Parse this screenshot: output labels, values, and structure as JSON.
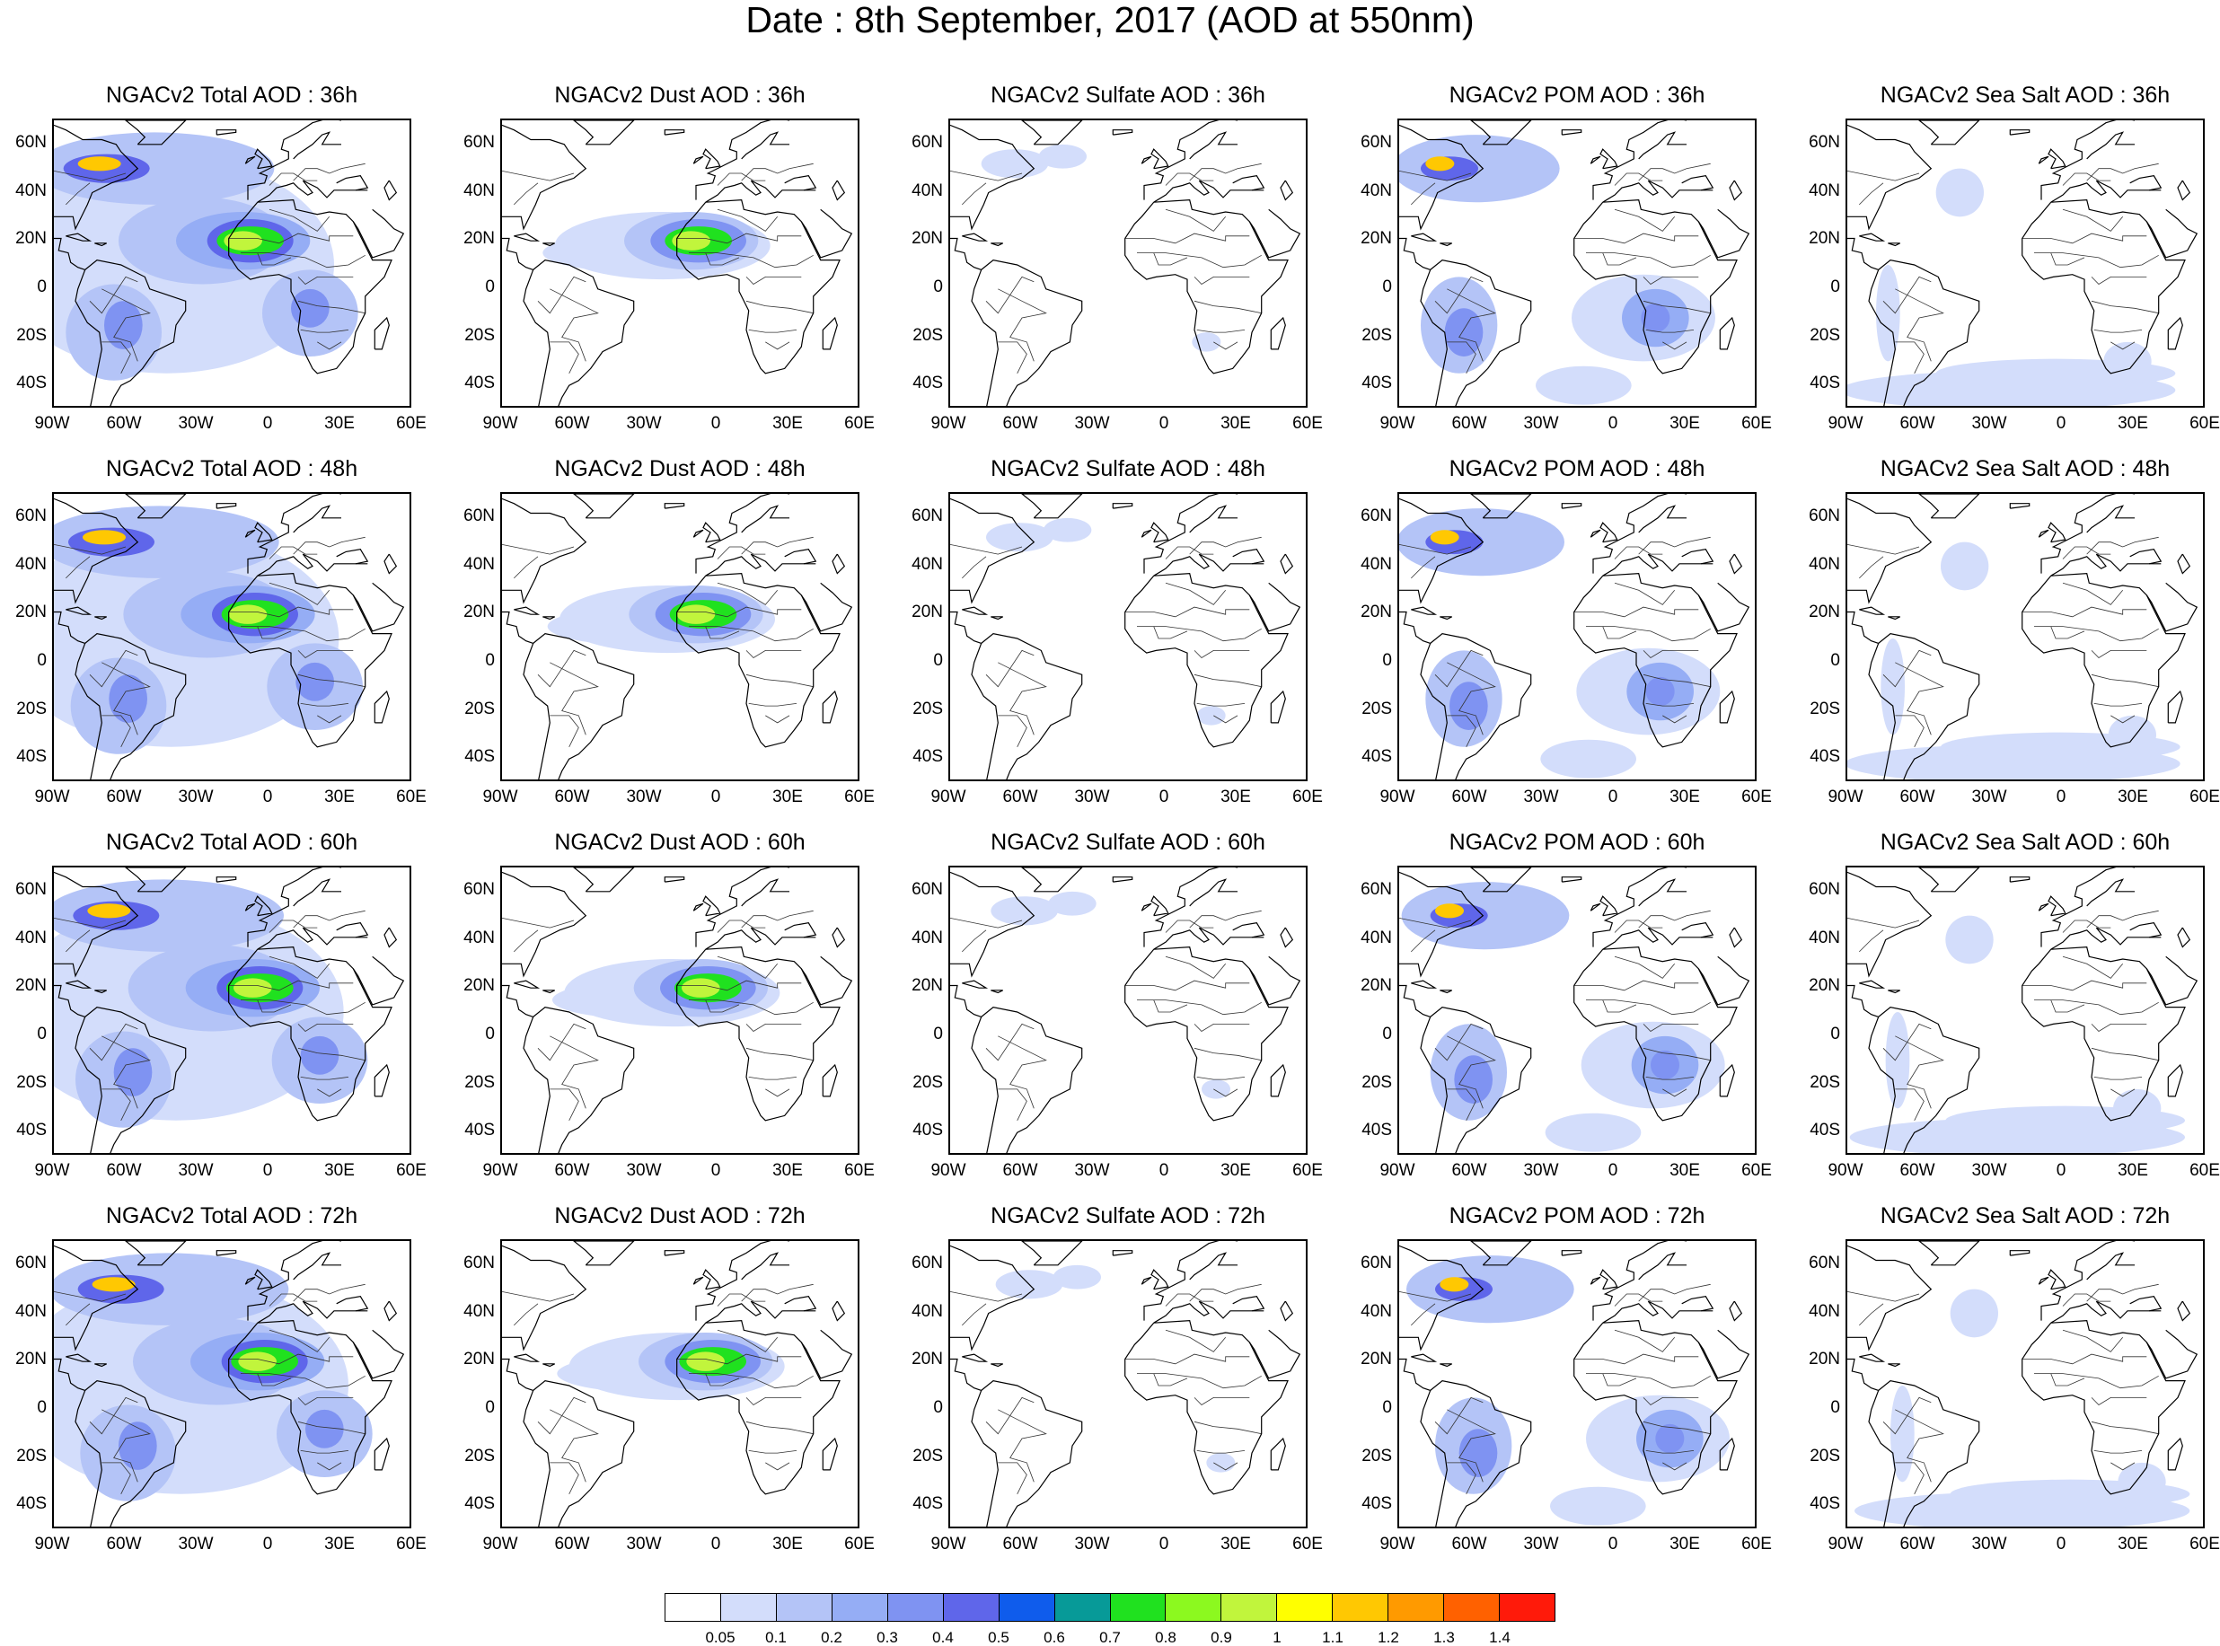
{
  "title": "Date : 8th September, 2017 (AOD at 550nm)",
  "panels": [
    [
      "NGACv2 Total AOD : 36h",
      "NGACv2 Dust AOD : 36h",
      "NGACv2 Sulfate AOD : 36h",
      "NGACv2 POM AOD : 36h",
      "NGACv2 Sea Salt AOD : 36h"
    ],
    [
      "NGACv2 Total AOD : 48h",
      "NGACv2 Dust AOD : 48h",
      "NGACv2 Sulfate AOD : 48h",
      "NGACv2 POM AOD : 48h",
      "NGACv2 Sea Salt AOD : 48h"
    ],
    [
      "NGACv2 Total AOD : 60h",
      "NGACv2 Dust AOD : 60h",
      "NGACv2 Sulfate AOD : 60h",
      "NGACv2 POM AOD : 60h",
      "NGACv2 Sea Salt AOD : 60h"
    ],
    [
      "NGACv2 Total AOD : 72h",
      "NGACv2 Dust AOD : 72h",
      "NGACv2 Sulfate AOD : 72h",
      "NGACv2 POM AOD : 72h",
      "NGACv2 Sea Salt  AOD : 72h"
    ]
  ],
  "panel_types": [
    "total",
    "dust",
    "sulfate",
    "pom",
    "seasalt"
  ],
  "lat_ticks": [
    "60N",
    "40N",
    "20N",
    "0",
    "20S",
    "40S"
  ],
  "lon_ticks": [
    "90W",
    "60W",
    "30W",
    "0",
    "30E",
    "60E"
  ],
  "map_extent": {
    "lon": [
      -90,
      60
    ],
    "lat": [
      -50,
      70
    ]
  },
  "colorbar": {
    "labels": [
      "0.05",
      "0.1",
      "0.2",
      "0.3",
      "0.4",
      "0.5",
      "0.6",
      "0.7",
      "0.8",
      "0.9",
      "1",
      "1.1",
      "1.2",
      "1.3",
      "1.4"
    ],
    "colors": [
      "#ffffff",
      "#d3ddfb",
      "#b4c4f7",
      "#95adf5",
      "#7f93f2",
      "#5f66ea",
      "#0f5cec",
      "#079a98",
      "#20e11f",
      "#8cf91f",
      "#c1f53c",
      "#ffff00",
      "#ffc802",
      "#ff9a00",
      "#ff6100",
      "#ff1a0a"
    ]
  }
}
